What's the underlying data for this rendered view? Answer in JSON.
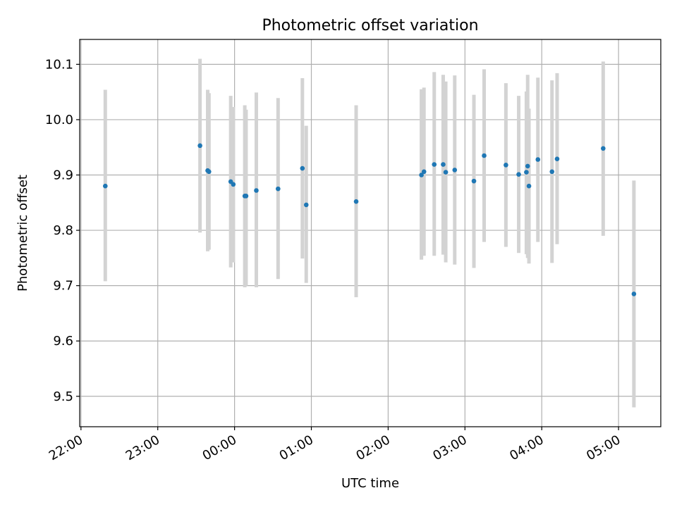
{
  "chart_data": {
    "type": "scatter",
    "title": "Photometric offset variation",
    "xlabel": "UTC time",
    "ylabel": "Photometric offset",
    "grid": true,
    "legend": "none",
    "colors": {
      "marker": "#1f77b4",
      "errorbar": "#d3d3d3",
      "grid": "#b0b0b0"
    },
    "xlim": [
      "21:59",
      "05:33"
    ],
    "ylim": [
      9.445,
      10.145
    ],
    "x_ticks": [
      "22:00",
      "23:00",
      "00:00",
      "01:00",
      "02:00",
      "03:00",
      "04:00",
      "05:00"
    ],
    "y_ticks": [
      "9.5",
      "9.6",
      "9.7",
      "9.8",
      "9.9",
      "10.0",
      "10.1"
    ],
    "points": [
      {
        "time": "22:19",
        "y": 9.88,
        "low": 9.708,
        "high": 10.054
      },
      {
        "time": "23:33",
        "y": 9.953,
        "low": 9.796,
        "high": 10.11
      },
      {
        "time": "23:39",
        "y": 9.908,
        "low": 9.762,
        "high": 10.054
      },
      {
        "time": "23:40",
        "y": 9.906,
        "low": 9.765,
        "high": 10.048
      },
      {
        "time": "23:57",
        "y": 9.888,
        "low": 9.733,
        "high": 10.043
      },
      {
        "time": "23:59",
        "y": 9.883,
        "low": 9.742,
        "high": 10.023
      },
      {
        "time": "00:08",
        "y": 9.862,
        "low": 9.697,
        "high": 10.026
      },
      {
        "time": "00:09",
        "y": 9.862,
        "low": 9.7,
        "high": 10.018
      },
      {
        "time": "00:17",
        "y": 9.872,
        "low": 9.697,
        "high": 10.049
      },
      {
        "time": "00:34",
        "y": 9.875,
        "low": 9.712,
        "high": 10.039
      },
      {
        "time": "00:53",
        "y": 9.912,
        "low": 9.749,
        "high": 10.075
      },
      {
        "time": "00:56",
        "y": 9.846,
        "low": 9.705,
        "high": 9.989
      },
      {
        "time": "01:35",
        "y": 9.852,
        "low": 9.679,
        "high": 10.026
      },
      {
        "time": "02:26",
        "y": 9.9,
        "low": 9.747,
        "high": 10.055
      },
      {
        "time": "02:28",
        "y": 9.906,
        "low": 9.754,
        "high": 10.058
      },
      {
        "time": "02:36",
        "y": 9.919,
        "low": 9.754,
        "high": 10.086
      },
      {
        "time": "02:43",
        "y": 9.919,
        "low": 9.756,
        "high": 10.081
      },
      {
        "time": "02:45",
        "y": 9.905,
        "low": 9.742,
        "high": 10.069
      },
      {
        "time": "02:52",
        "y": 9.909,
        "low": 9.738,
        "high": 10.08
      },
      {
        "time": "03:07",
        "y": 9.889,
        "low": 9.732,
        "high": 10.045
      },
      {
        "time": "03:15",
        "y": 9.935,
        "low": 9.779,
        "high": 10.091
      },
      {
        "time": "03:32",
        "y": 9.918,
        "low": 9.77,
        "high": 10.066
      },
      {
        "time": "03:42",
        "y": 9.901,
        "low": 9.759,
        "high": 10.043
      },
      {
        "time": "03:48",
        "y": 9.905,
        "low": 9.757,
        "high": 10.051
      },
      {
        "time": "03:49",
        "y": 9.916,
        "low": 9.75,
        "high": 10.081
      },
      {
        "time": "03:50",
        "y": 9.88,
        "low": 9.74,
        "high": 10.02
      },
      {
        "time": "03:57",
        "y": 9.928,
        "low": 9.779,
        "high": 10.076
      },
      {
        "time": "04:08",
        "y": 9.906,
        "low": 9.741,
        "high": 10.071
      },
      {
        "time": "04:12",
        "y": 9.929,
        "low": 9.775,
        "high": 10.084
      },
      {
        "time": "04:48",
        "y": 9.948,
        "low": 9.79,
        "high": 10.105
      },
      {
        "time": "05:12",
        "y": 9.685,
        "low": 9.48,
        "high": 9.89
      }
    ]
  }
}
